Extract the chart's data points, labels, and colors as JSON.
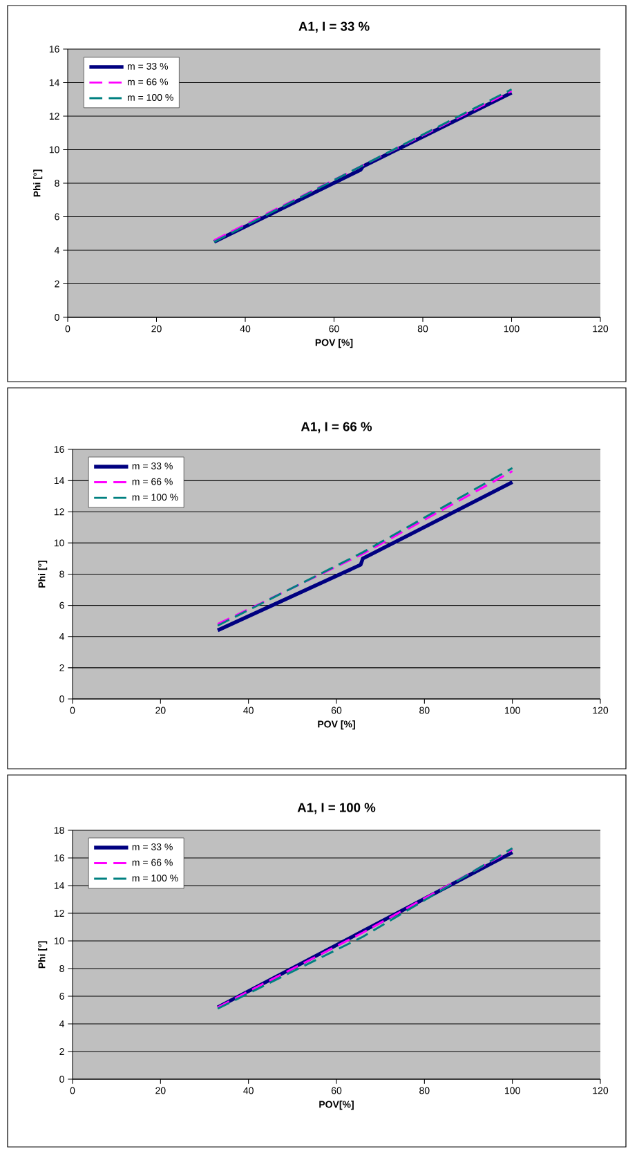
{
  "chart_data": [
    {
      "type": "line",
      "title": "A1, I = 33 %",
      "xlabel": "POV [%]",
      "ylabel": "Phi [°]",
      "xlim": [
        0,
        120
      ],
      "xticks": [
        0,
        20,
        40,
        60,
        80,
        100,
        120
      ],
      "ylim": [
        0,
        16
      ],
      "yticks": [
        0,
        2,
        4,
        6,
        8,
        10,
        12,
        14,
        16
      ],
      "grid": "y",
      "legend": "top left",
      "series": [
        {
          "name": "m = 33 %",
          "color": "#000080",
          "line_style": "solid",
          "x": [
            33,
            66,
            66.5,
            100
          ],
          "values": [
            4.5,
            8.8,
            9.0,
            13.4
          ]
        },
        {
          "name": "m = 66 %",
          "color": "#ff00ff",
          "line_style": "dashed",
          "x": [
            33,
            66,
            100
          ],
          "values": [
            4.6,
            9.0,
            13.5
          ]
        },
        {
          "name": "m = 100 %",
          "color": "#008080",
          "line_style": "dashed",
          "x": [
            33,
            66,
            100
          ],
          "values": [
            4.5,
            9.0,
            13.6
          ]
        }
      ]
    },
    {
      "type": "line",
      "title": "A1,  I = 66 %",
      "xlabel": "POV [%]",
      "ylabel": "Phi [°]",
      "xlim": [
        0,
        120
      ],
      "xticks": [
        0,
        20,
        40,
        60,
        80,
        100,
        120
      ],
      "ylim": [
        0,
        16
      ],
      "yticks": [
        0,
        2,
        4,
        6,
        8,
        10,
        12,
        14,
        16
      ],
      "grid": "y",
      "legend": "top left",
      "series": [
        {
          "name": "m = 33 %",
          "color": "#000080",
          "line_style": "solid",
          "x": [
            33,
            65.5,
            66,
            100
          ],
          "values": [
            4.4,
            8.6,
            9.0,
            13.9
          ]
        },
        {
          "name": "m = 66 %",
          "color": "#ff00ff",
          "line_style": "dashed",
          "x": [
            33,
            66,
            100
          ],
          "values": [
            4.8,
            9.3,
            14.6
          ]
        },
        {
          "name": "m = 100 %",
          "color": "#008080",
          "line_style": "dashed",
          "x": [
            33,
            66,
            100
          ],
          "values": [
            4.7,
            9.4,
            14.8
          ]
        }
      ]
    },
    {
      "type": "line",
      "title": "A1,  I = 100 %",
      "xlabel": "POV[%]",
      "ylabel": "Phi [°]",
      "xlim": [
        0,
        120
      ],
      "xticks": [
        0,
        20,
        40,
        60,
        80,
        100,
        120
      ],
      "ylim": [
        0,
        18
      ],
      "yticks": [
        0,
        2,
        4,
        6,
        8,
        10,
        12,
        14,
        16,
        18
      ],
      "grid": "y",
      "legend": "top left",
      "series": [
        {
          "name": "m = 33 %",
          "color": "#000080",
          "line_style": "solid",
          "x": [
            33,
            66,
            100
          ],
          "values": [
            5.2,
            10.7,
            16.4
          ]
        },
        {
          "name": "m = 66 %",
          "color": "#ff00ff",
          "line_style": "dashed",
          "x": [
            33,
            66,
            100
          ],
          "values": [
            5.2,
            10.6,
            16.6
          ]
        },
        {
          "name": "m = 100 %",
          "color": "#008080",
          "line_style": "dashed",
          "x": [
            33,
            66,
            100
          ],
          "values": [
            5.1,
            10.3,
            16.7
          ]
        }
      ]
    }
  ]
}
